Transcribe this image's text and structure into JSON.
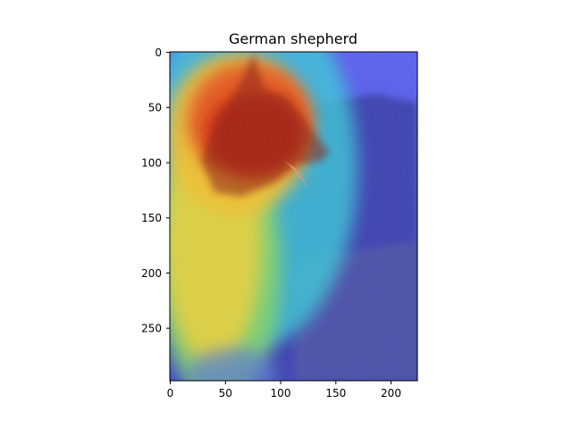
{
  "title": "German shepherd",
  "image": {
    "description": "Grad-CAM heatmap overlay on a photo of a German shepherd in profile facing right; hottest (red) over head/snout, warm (yellow) over body, cool (blue) over background hillside and grass"
  },
  "x_axis": {
    "ticks": [
      0,
      50,
      100,
      150,
      200
    ],
    "tick_labels": [
      "0",
      "50",
      "100",
      "150",
      "200"
    ],
    "range": [
      0,
      224
    ]
  },
  "y_axis": {
    "ticks": [
      0,
      50,
      100,
      150,
      200,
      250
    ],
    "tick_labels": [
      "0",
      "50",
      "100",
      "150",
      "200",
      "250"
    ],
    "range": [
      0,
      299
    ]
  },
  "colormap": "jet"
}
